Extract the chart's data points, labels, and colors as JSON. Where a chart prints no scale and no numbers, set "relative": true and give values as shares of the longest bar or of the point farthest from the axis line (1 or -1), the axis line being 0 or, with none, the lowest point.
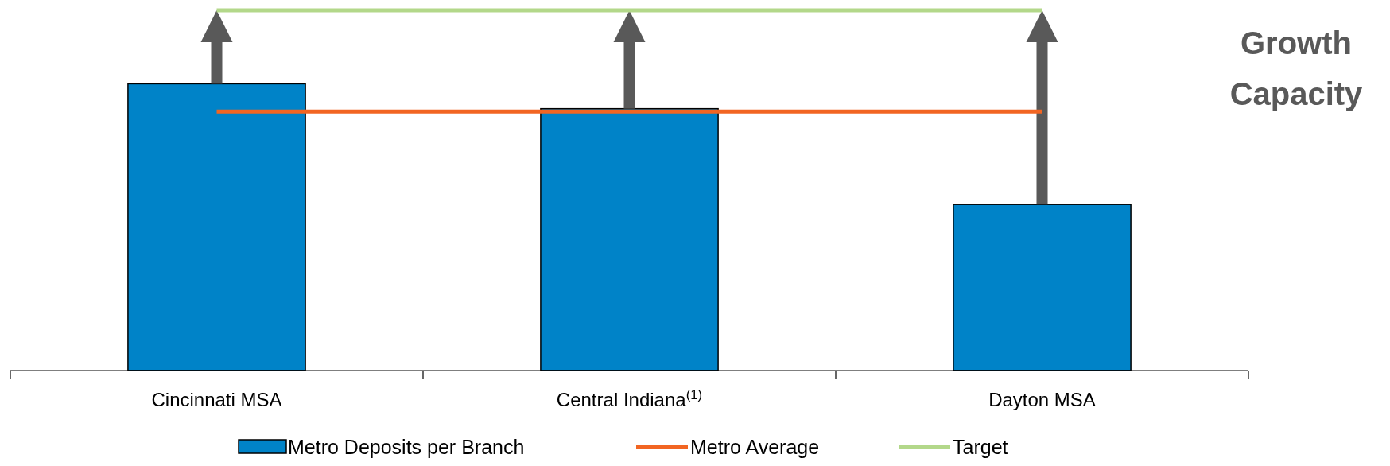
{
  "chart_data": {
    "type": "bar",
    "relative": true,
    "categories": [
      "Cincinnati MSA",
      "Central Indiana$^{(1)}$",
      "Dayton MSA"
    ],
    "series": [
      {
        "name": "Metro Deposits per Branch",
        "color": "#0083c8",
        "values": [
          0.796,
          0.727,
          0.461
        ]
      },
      {
        "name": "Metro Average",
        "type": "line",
        "color": "#f26522",
        "values": [
          0.719,
          0.719,
          0.719
        ]
      },
      {
        "name": "Target",
        "type": "line",
        "color": "#b3d88a",
        "values": [
          1,
          1,
          1
        ]
      }
    ],
    "annotations": [
      "Growth Capacity"
    ],
    "legend": "bottom"
  }
}
